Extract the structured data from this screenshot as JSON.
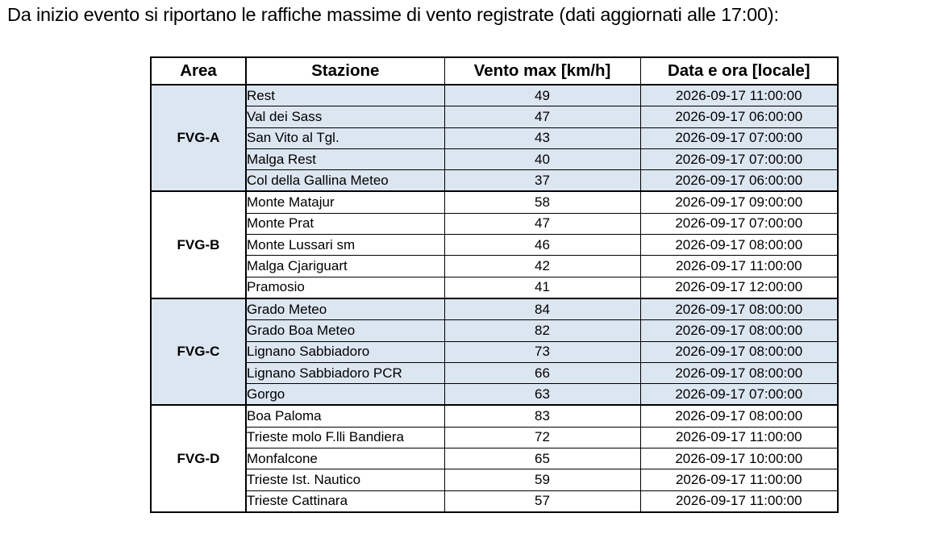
{
  "intro_text": "Da inizio evento si riportano le raffiche massime di vento registrate (dati aggiornati alle 17:00):",
  "table": {
    "headers": {
      "area": "Area",
      "stazione": "Stazione",
      "vento": "Vento max [km/h]",
      "data": "Data e ora [locale]"
    },
    "groups": [
      {
        "area": "FVG-A",
        "shaded": true,
        "rows": [
          {
            "stazione": "Rest",
            "vento": "49",
            "data": "2026-09-17 11:00:00"
          },
          {
            "stazione": "Val dei Sass",
            "vento": "47",
            "data": "2026-09-17 06:00:00"
          },
          {
            "stazione": "San Vito al Tgl.",
            "vento": "43",
            "data": "2026-09-17 07:00:00"
          },
          {
            "stazione": "Malga Rest",
            "vento": "40",
            "data": "2026-09-17 07:00:00"
          },
          {
            "stazione": "Col della Gallina Meteo",
            "vento": "37",
            "data": "2026-09-17 06:00:00"
          }
        ]
      },
      {
        "area": "FVG-B",
        "shaded": false,
        "rows": [
          {
            "stazione": "Monte Matajur",
            "vento": "58",
            "data": "2026-09-17 09:00:00"
          },
          {
            "stazione": "Monte Prat",
            "vento": "47",
            "data": "2026-09-17 07:00:00"
          },
          {
            "stazione": "Monte Lussari sm",
            "vento": "46",
            "data": "2026-09-17 08:00:00"
          },
          {
            "stazione": "Malga Cjariguart",
            "vento": "42",
            "data": "2026-09-17 11:00:00"
          },
          {
            "stazione": "Pramosio",
            "vento": "41",
            "data": "2026-09-17 12:00:00"
          }
        ]
      },
      {
        "area": "FVG-C",
        "shaded": true,
        "rows": [
          {
            "stazione": "Grado Meteo",
            "vento": "84",
            "data": "2026-09-17 08:00:00"
          },
          {
            "stazione": "Grado Boa Meteo",
            "vento": "82",
            "data": "2026-09-17 08:00:00"
          },
          {
            "stazione": "Lignano Sabbiadoro",
            "vento": "73",
            "data": "2026-09-17 08:00:00"
          },
          {
            "stazione": "Lignano Sabbiadoro PCR",
            "vento": "66",
            "data": "2026-09-17 08:00:00"
          },
          {
            "stazione": "Gorgo",
            "vento": "63",
            "data": "2026-09-17 07:00:00"
          }
        ]
      },
      {
        "area": "FVG-D",
        "shaded": false,
        "rows": [
          {
            "stazione": "Boa Paloma",
            "vento": "83",
            "data": "2026-09-17 08:00:00"
          },
          {
            "stazione": "Trieste molo F.lli Bandiera",
            "vento": "72",
            "data": "2026-09-17 11:00:00"
          },
          {
            "stazione": "Monfalcone",
            "vento": "65",
            "data": "2026-09-17 10:00:00"
          },
          {
            "stazione": "Trieste Ist. Nautico",
            "vento": "59",
            "data": "2026-09-17 11:00:00"
          },
          {
            "stazione": "Trieste Cattinara",
            "vento": "57",
            "data": "2026-09-17 11:00:00"
          }
        ]
      }
    ]
  },
  "colors": {
    "shaded_row": "#dce6f1",
    "border": "#000000"
  }
}
